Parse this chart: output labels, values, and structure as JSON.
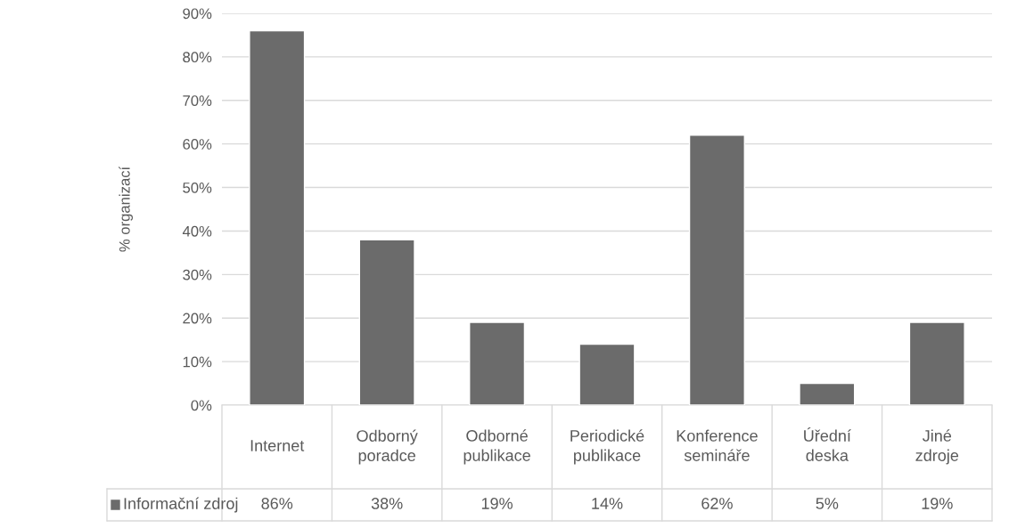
{
  "chart_data": {
    "type": "bar",
    "categories": [
      "Internet",
      "Odborný poradce",
      "Odborné publikace",
      "Periodické publikace",
      "Konference semináře",
      "Úřední deska",
      "Jiné zdroje"
    ],
    "series": [
      {
        "name": "Informační zdroj",
        "color": "#6b6b6b",
        "values": [
          86,
          38,
          19,
          14,
          62,
          5,
          19
        ],
        "value_labels": [
          "86%",
          "38%",
          "19%",
          "14%",
          "62%",
          "5%",
          "19%"
        ]
      }
    ],
    "ylabel": "% organizací",
    "ylim": [
      0,
      90
    ],
    "yticks": [
      {
        "value": 0,
        "label": "0%"
      },
      {
        "value": 10,
        "label": "10%"
      },
      {
        "value": 20,
        "label": "20%"
      },
      {
        "value": 30,
        "label": "30%"
      },
      {
        "value": 40,
        "label": "40%"
      },
      {
        "value": 50,
        "label": "50%"
      },
      {
        "value": 60,
        "label": "60%"
      },
      {
        "value": 70,
        "label": "70%"
      },
      {
        "value": 80,
        "label": "80%"
      },
      {
        "value": 90,
        "label": "90%"
      }
    ],
    "grid": "y",
    "legend": "bottom"
  }
}
